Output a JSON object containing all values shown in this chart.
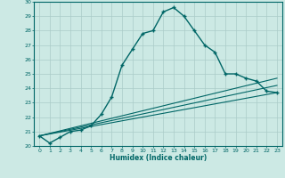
{
  "xlabel": "Humidex (Indice chaleur)",
  "background_color": "#cce9e4",
  "grid_color": "#aaccc8",
  "line_color": "#006666",
  "xlim": [
    -0.5,
    23.5
  ],
  "ylim": [
    20,
    30
  ],
  "xticks": [
    0,
    1,
    2,
    3,
    4,
    5,
    6,
    7,
    8,
    9,
    10,
    11,
    12,
    13,
    14,
    15,
    16,
    17,
    18,
    19,
    20,
    21,
    22,
    23
  ],
  "yticks": [
    20,
    21,
    22,
    23,
    24,
    25,
    26,
    27,
    28,
    29,
    30
  ],
  "series": [
    {
      "x": [
        0,
        1,
        2,
        3,
        4,
        5,
        6,
        7,
        8,
        9,
        10,
        11,
        12,
        13,
        14,
        15,
        16,
        17,
        18,
        19,
        20,
        21,
        22,
        23
      ],
      "y": [
        20.7,
        20.2,
        20.6,
        21.0,
        21.1,
        21.4,
        22.2,
        23.4,
        25.6,
        26.7,
        27.8,
        28.0,
        29.3,
        29.6,
        29.0,
        28.0,
        27.0,
        26.5,
        25.0,
        25.0,
        24.7,
        24.5,
        23.8,
        23.7
      ],
      "marker": "+",
      "markersize": 3.5,
      "linewidth": 1.0
    },
    {
      "x": [
        0,
        23
      ],
      "y": [
        20.7,
        23.7
      ],
      "marker": null,
      "linewidth": 0.8
    },
    {
      "x": [
        0,
        23
      ],
      "y": [
        20.7,
        24.2
      ],
      "marker": null,
      "linewidth": 0.8
    },
    {
      "x": [
        0,
        23
      ],
      "y": [
        20.7,
        24.7
      ],
      "marker": null,
      "linewidth": 0.8
    }
  ]
}
